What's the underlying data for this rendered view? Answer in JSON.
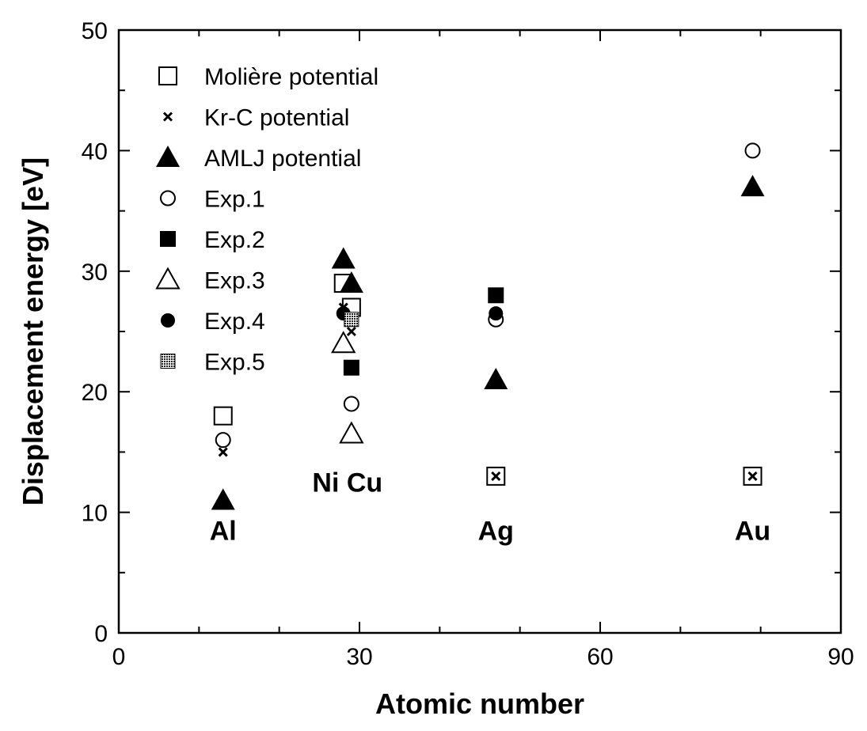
{
  "chart_data": {
    "type": "scatter",
    "title": "",
    "xlabel": "Atomic number",
    "ylabel": "Displacement energy [eV]",
    "xlim": [
      0,
      90
    ],
    "ylim": [
      0,
      50
    ],
    "xticks": [
      "0",
      "30",
      "60",
      "90"
    ],
    "yticks": [
      "0",
      "10",
      "20",
      "30",
      "40",
      "50"
    ],
    "grid": false,
    "legend_position": "top-left",
    "series": [
      {
        "name": "Molière potential",
        "marker": "open-square",
        "points": [
          [
            13,
            18
          ],
          [
            28,
            29
          ],
          [
            29,
            27
          ],
          [
            47,
            13
          ],
          [
            79,
            13
          ]
        ]
      },
      {
        "name": "Kr-C potential",
        "marker": "x",
        "points": [
          [
            13,
            15
          ],
          [
            28,
            27
          ],
          [
            29,
            25
          ],
          [
            47,
            13
          ],
          [
            79,
            13
          ]
        ]
      },
      {
        "name": "AMLJ potential",
        "marker": "filled-triangle",
        "points": [
          [
            13,
            11
          ],
          [
            28,
            31
          ],
          [
            29,
            29
          ],
          [
            47,
            21
          ],
          [
            79,
            37
          ]
        ]
      },
      {
        "name": "Exp.1",
        "marker": "open-circle",
        "points": [
          [
            13,
            16
          ],
          [
            29,
            19
          ],
          [
            47,
            26
          ],
          [
            79,
            40
          ]
        ]
      },
      {
        "name": "Exp.2",
        "marker": "filled-square",
        "points": [
          [
            29,
            22
          ],
          [
            47,
            28
          ]
        ]
      },
      {
        "name": "Exp.3",
        "marker": "open-triangle",
        "points": [
          [
            28,
            24
          ],
          [
            29,
            16.5
          ]
        ]
      },
      {
        "name": "Exp.4",
        "marker": "filled-circle",
        "points": [
          [
            28,
            26.5
          ],
          [
            47,
            26.5
          ]
        ]
      },
      {
        "name": "Exp.5",
        "marker": "hatched-square",
        "points": [
          [
            29,
            26
          ]
        ]
      }
    ],
    "annotations": [
      {
        "text": "Al",
        "x": 13,
        "y": 8.5
      },
      {
        "text": "Ni Cu",
        "x": 28.5,
        "y": 12.5
      },
      {
        "text": "Ag",
        "x": 47,
        "y": 8.5
      },
      {
        "text": "Au",
        "x": 79,
        "y": 8.5
      }
    ]
  }
}
